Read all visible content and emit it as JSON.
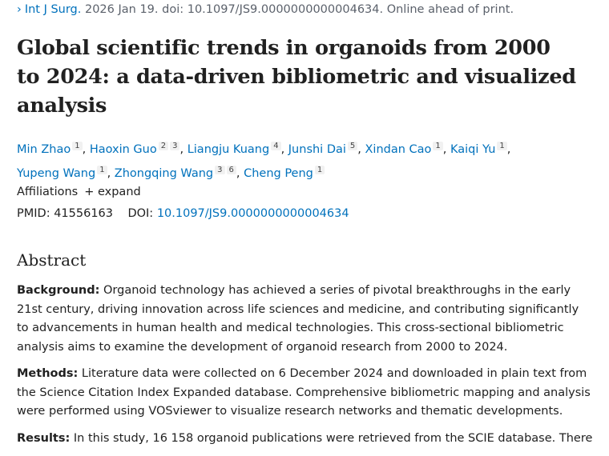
{
  "citation": {
    "journal": "Int J Surg.",
    "rest": " 2026 Jan 19. doi: 10.1097/JS9.0000000000004634. Online ahead of print."
  },
  "title": "Global scientific trends in organoids from 2000 to 2024: a data-driven bibliometric and visualized analysis",
  "authors": [
    {
      "name": "Min Zhao",
      "aff": [
        "1"
      ]
    },
    {
      "name": "Haoxin Guo",
      "aff": [
        "2",
        "3"
      ]
    },
    {
      "name": "Liangju Kuang",
      "aff": [
        "4"
      ]
    },
    {
      "name": "Junshi Dai",
      "aff": [
        "5"
      ]
    },
    {
      "name": "Xindan Cao",
      "aff": [
        "1"
      ]
    },
    {
      "name": "Kaiqi Yu",
      "aff": [
        "1"
      ]
    },
    {
      "name": "Yupeng Wang",
      "aff": [
        "1"
      ]
    },
    {
      "name": "Zhongqing Wang",
      "aff": [
        "3",
        "6"
      ]
    },
    {
      "name": "Cheng Peng",
      "aff": [
        "1"
      ]
    }
  ],
  "affiliations": {
    "label": "Affiliations",
    "expand": "+ expand"
  },
  "ids": {
    "pmid_label": "PMID:",
    "pmid": "41556163",
    "doi_label": "DOI:",
    "doi": "10.1097/JS9.0000000000004634"
  },
  "abstract": {
    "heading": "Abstract",
    "sections": [
      {
        "label": "Background:",
        "text": " Organoid technology has achieved a series of pivotal breakthroughs in the early 21st century, driving innovation across life sciences and medicine, and contributing significantly to advancements in human health and medical technologies. This cross-sectional bibliometric analysis aims to examine the development of organoid research from 2000 to 2024."
      },
      {
        "label": "Methods:",
        "text": " Literature data were collected on 6 December 2024 and downloaded in plain text from the Science Citation Index Expanded database. Comprehensive bibliometric mapping and analysis were performed using VOSviewer to visualize research networks and thematic developments."
      },
      {
        "label": "Results:",
        "text": " In this study, 16 158 organoid publications were retrieved from the SCIE database. There"
      }
    ]
  }
}
